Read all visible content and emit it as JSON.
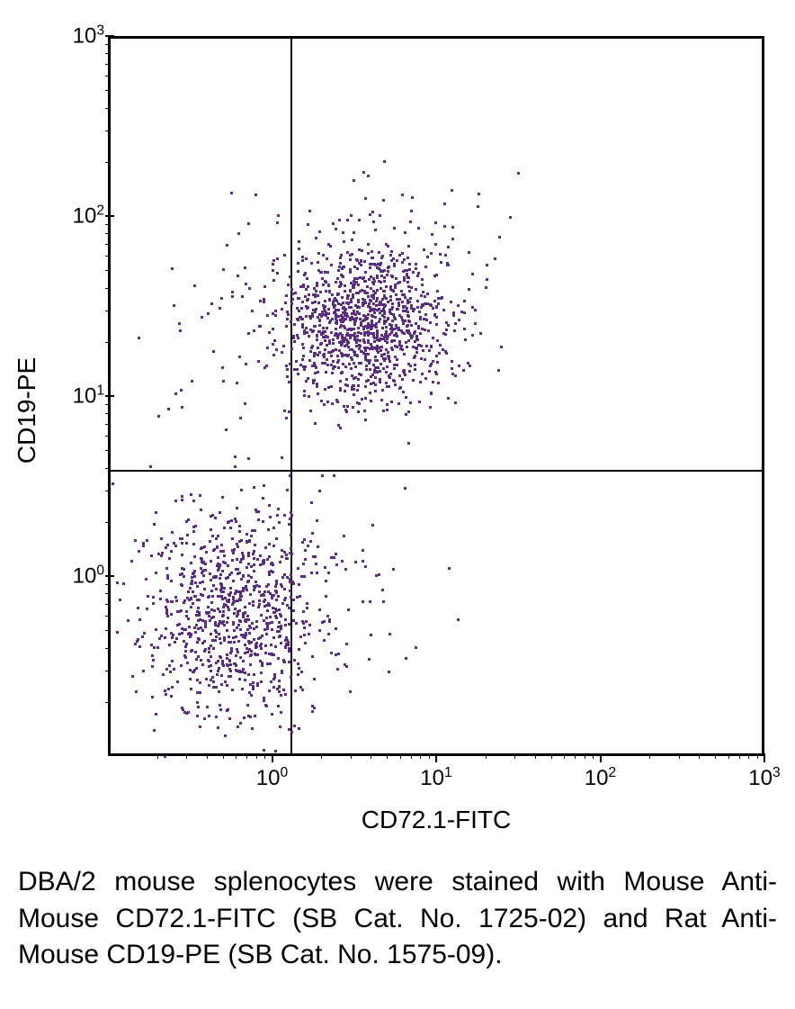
{
  "chart": {
    "type": "scatter",
    "x_axis": {
      "label": "CD72.1-FITC",
      "scale": "log",
      "min_exp": -1,
      "max_exp": 3,
      "tick_exps": [
        0,
        1,
        2,
        3
      ],
      "tick_labels": [
        "10⁰",
        "10¹",
        "10²",
        "10³"
      ]
    },
    "y_axis": {
      "label": "CD19-PE",
      "scale": "log",
      "min_exp": -1,
      "max_exp": 3,
      "tick_exps": [
        0,
        1,
        2,
        3
      ],
      "tick_labels": [
        "10⁰",
        "10¹",
        "10²",
        "10³"
      ]
    },
    "quadrant": {
      "x_exp": 0.1,
      "y_exp": 0.6
    },
    "point_color": "#5b2d82",
    "point_size": 3,
    "background_color": "#ffffff",
    "border_color": "#000000",
    "clusters": [
      {
        "cx_exp": -0.25,
        "cy_exp": -0.2,
        "n": 900,
        "sx": 0.28,
        "sy": 0.3
      },
      {
        "cx_exp": 0.55,
        "cy_exp": 1.4,
        "n": 1100,
        "sx": 0.25,
        "sy": 0.22
      },
      {
        "cx_exp": 0.0,
        "cy_exp": 1.4,
        "n": 80,
        "sx": 0.35,
        "sy": 0.3
      },
      {
        "cx_exp": 0.3,
        "cy_exp": -0.1,
        "n": 40,
        "sx": 0.4,
        "sy": 0.3
      },
      {
        "cx_exp": 0.8,
        "cy_exp": 1.8,
        "n": 60,
        "sx": 0.4,
        "sy": 0.3
      }
    ]
  },
  "caption": "DBA/2 mouse splenocytes were stained with Mouse Anti-Mouse CD72.1-FITC (SB Cat. No. 1725-02) and Rat Anti-Mouse CD19-PE (SB Cat. No. 1575-09)."
}
